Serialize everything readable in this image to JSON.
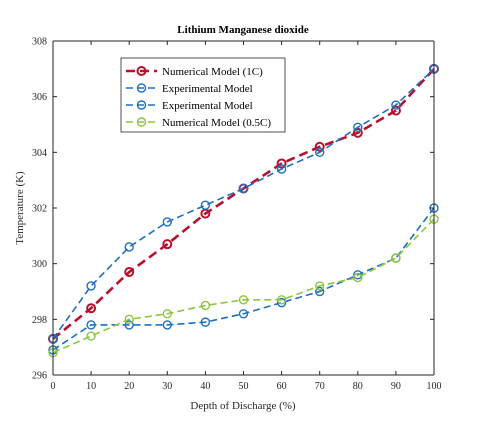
{
  "chart_data": {
    "type": "line",
    "title": "Lithium Manganese dioxide",
    "xlabel": "Depth of Discharge (%)",
    "ylabel": "Temperature (K)",
    "xlim": [
      0,
      100
    ],
    "ylim": [
      296,
      308
    ],
    "x_ticks": [
      "0",
      "10",
      "20",
      "30",
      "40",
      "50",
      "60",
      "70",
      "80",
      "90",
      "100"
    ],
    "y_ticks": [
      "296",
      "298",
      "300",
      "302",
      "304",
      "306",
      "308"
    ],
    "grid": false,
    "legend_position": "top-left",
    "x": [
      0,
      10,
      20,
      30,
      40,
      50,
      60,
      70,
      80,
      90,
      100
    ],
    "series": [
      {
        "name": "Numerical Model (1C)",
        "color": "#b5122e",
        "line_width": "thick",
        "values": [
          297.3,
          298.4,
          299.7,
          300.7,
          301.8,
          302.7,
          303.6,
          304.2,
          304.7,
          305.5,
          307.0
        ]
      },
      {
        "name": "Experimental Model",
        "color": "#1f6fbf",
        "line_width": "normal",
        "values": [
          297.3,
          299.2,
          300.6,
          301.5,
          302.1,
          302.7,
          303.4,
          304.0,
          304.9,
          305.7,
          307.0
        ]
      },
      {
        "name": "Experimental Model",
        "color": "#1f6fbf",
        "line_width": "normal",
        "values": [
          296.9,
          297.8,
          297.8,
          297.8,
          297.9,
          298.2,
          298.6,
          299.0,
          299.6,
          300.2,
          302.0
        ]
      },
      {
        "name": "Numerical Model (0.5C)",
        "color": "#8cc63e",
        "line_width": "normal",
        "values": [
          296.8,
          297.4,
          298.0,
          298.2,
          298.5,
          298.7,
          298.7,
          299.2,
          299.5,
          300.2,
          301.6
        ]
      }
    ]
  }
}
